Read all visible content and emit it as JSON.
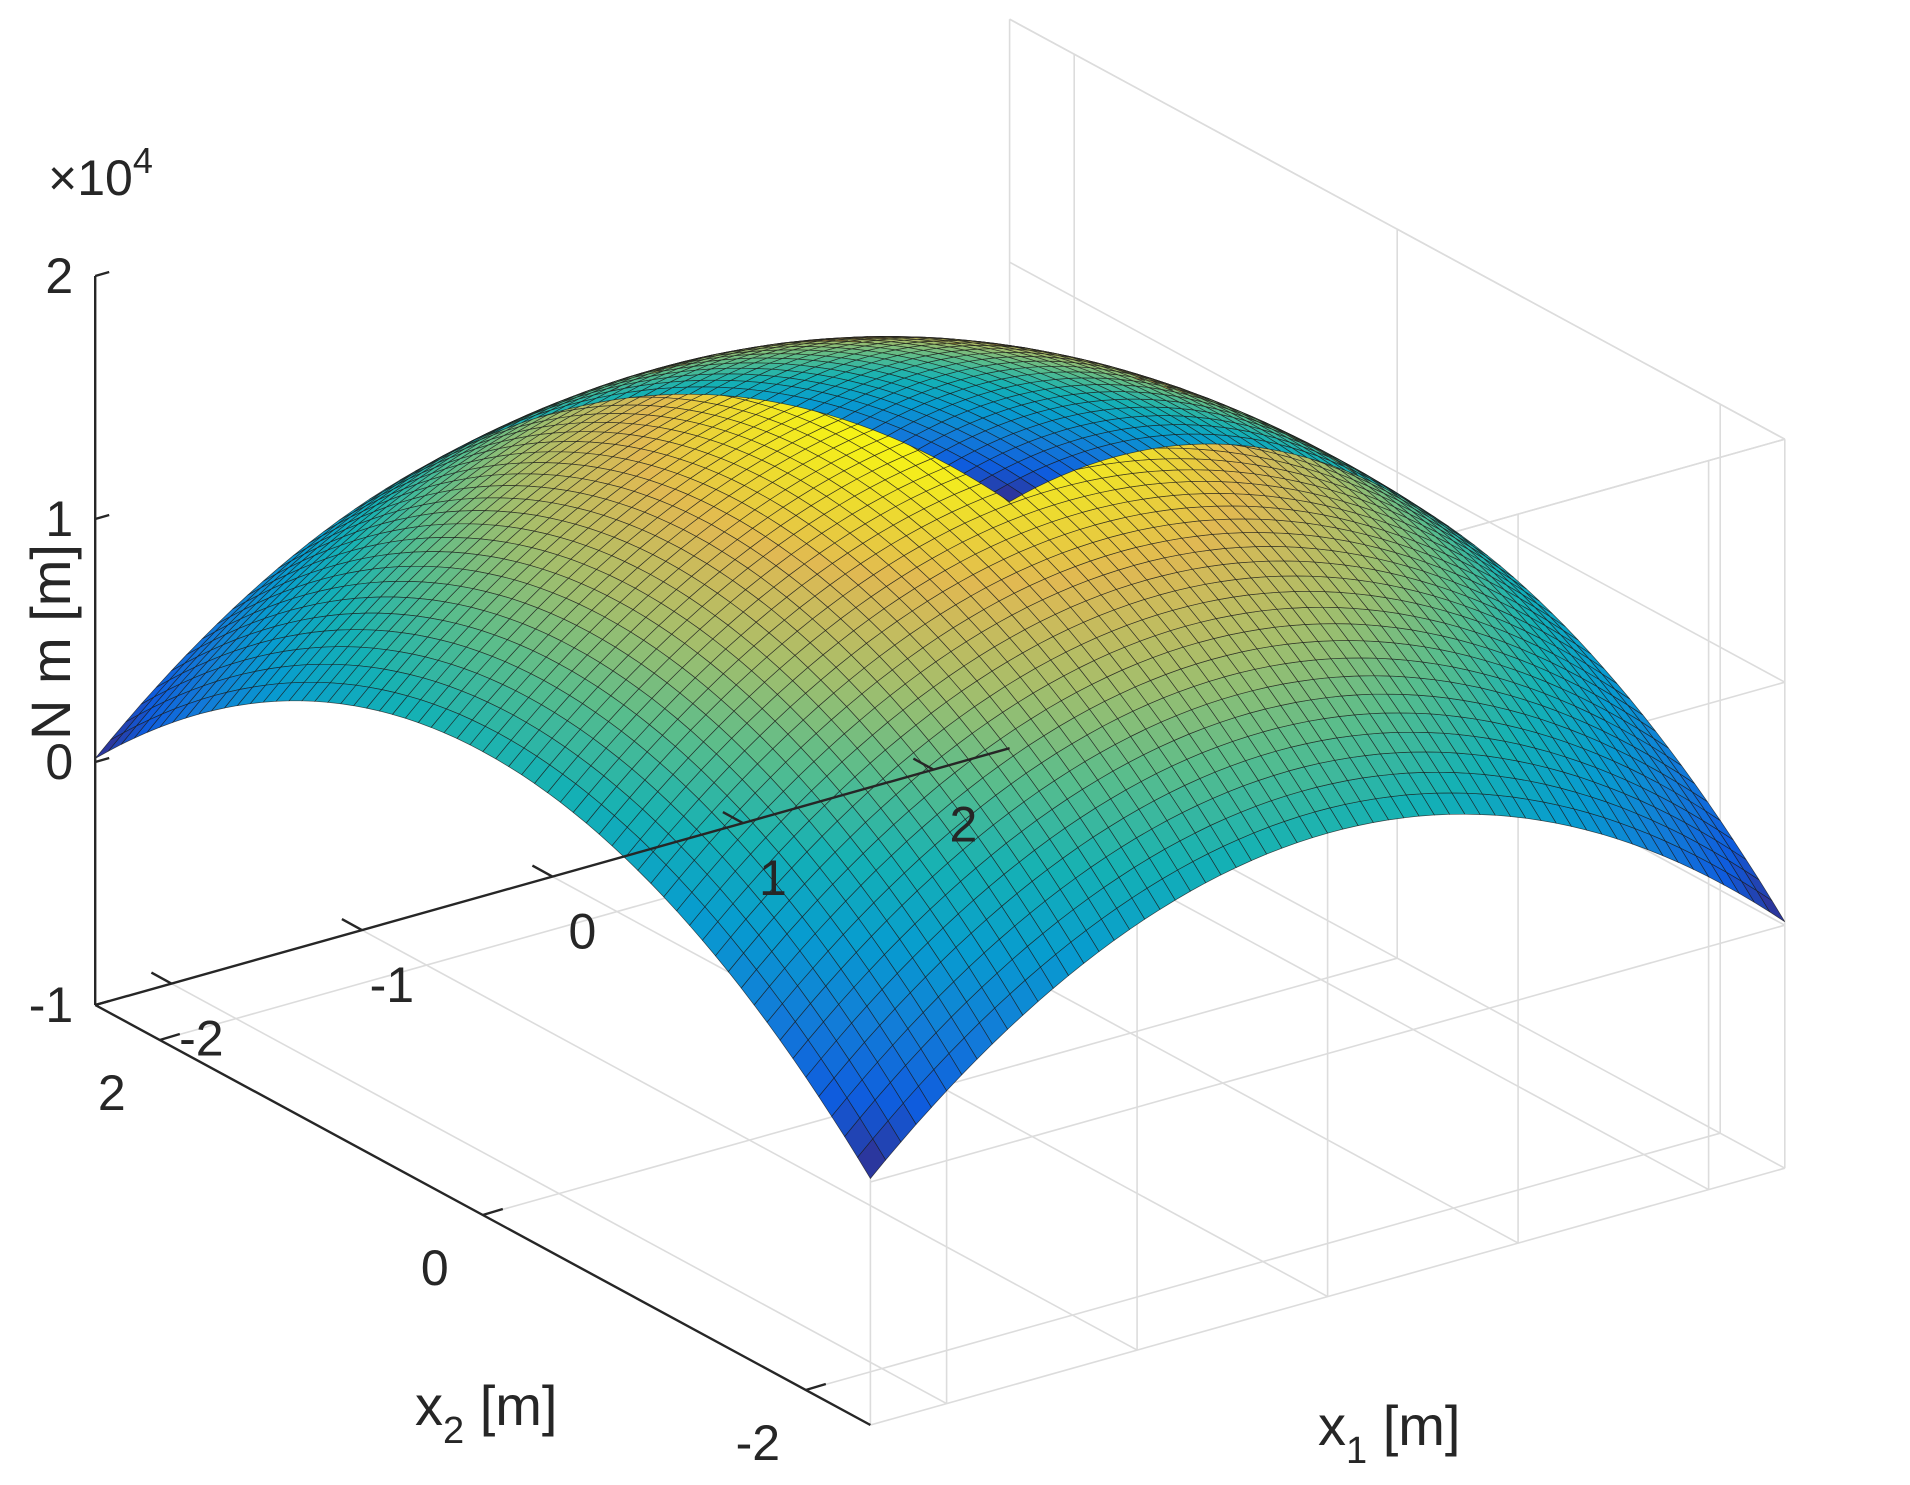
{
  "chart_data": {
    "type": "surface",
    "function": "z = 18000 - 1550*(x1^2 + x2^2)",
    "x1": {
      "label_main": "x",
      "label_sub": "1",
      "label_unit": " [m]",
      "ticks": [
        -2,
        -1,
        0,
        1,
        2
      ],
      "tick_labels": [
        "-2",
        "-1",
        "0",
        "1",
        "2"
      ],
      "range": [
        -2.4,
        2.4
      ]
    },
    "x2": {
      "label_main": "x",
      "label_sub": "2",
      "label_unit": " [m]",
      "ticks": [
        -2,
        0,
        2
      ],
      "tick_labels": [
        "-2",
        "0",
        "2"
      ],
      "range": [
        -2.4,
        2.4
      ]
    },
    "z": {
      "label": "N m [m]",
      "ticks": [
        -10000,
        0,
        10000,
        20000
      ],
      "tick_labels": [
        "-1",
        "0",
        "1",
        "2"
      ],
      "range": [
        -10000,
        20000
      ],
      "exponent_label": "×10",
      "exponent_power": "4"
    },
    "colormap": "parula",
    "grid": true,
    "surface_samples": [
      {
        "x1": 0,
        "x2": 0,
        "z": 18000
      },
      {
        "x1": 2.4,
        "x2": 0,
        "z": 9000
      },
      {
        "x1": 0,
        "x2": 2.4,
        "z": 9000
      },
      {
        "x1": -2.4,
        "x2": -2.4,
        "z": 140
      },
      {
        "x1": 2.4,
        "x2": 2.4,
        "z": 140
      },
      {
        "x1": -2.4,
        "x2": 2.4,
        "z": 140
      },
      {
        "x1": 2.4,
        "x2": -2.4,
        "z": 140
      }
    ]
  }
}
